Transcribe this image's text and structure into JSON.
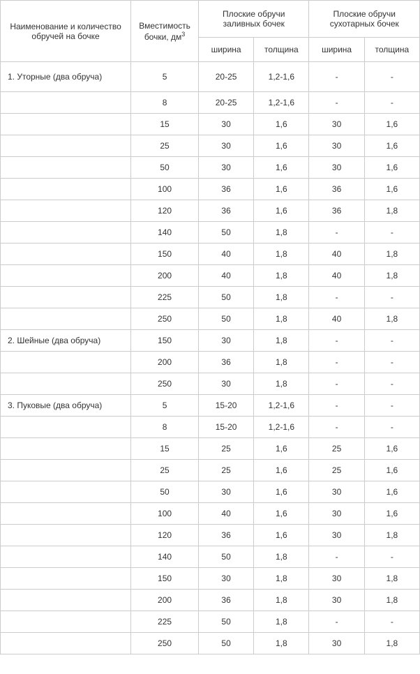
{
  "headers": {
    "name": "Наименование и количество обручей на бочке",
    "capacity_prefix": "Вместимость бочки, дм",
    "capacity_sup": "3",
    "flat_wet": "Плоские обручи заливных бочек",
    "flat_dry": "Плоские обручи сухотарных бочек",
    "width": "ширина",
    "thickness": "толщина"
  },
  "groups": [
    {
      "label": "1. Уторные (два обруча)",
      "rows": [
        {
          "cap": "5",
          "w1": "20-25",
          "t1": "1,2-1,6",
          "w2": "-",
          "t2": "-"
        },
        {
          "cap": "8",
          "w1": "20-25",
          "t1": "1,2-1,6",
          "w2": "-",
          "t2": "-"
        },
        {
          "cap": "15",
          "w1": "30",
          "t1": "1,6",
          "w2": "30",
          "t2": "1,6"
        },
        {
          "cap": "25",
          "w1": "30",
          "t1": "1,6",
          "w2": "30",
          "t2": "1,6"
        },
        {
          "cap": "50",
          "w1": "30",
          "t1": "1,6",
          "w2": "30",
          "t2": "1,6"
        },
        {
          "cap": "100",
          "w1": "36",
          "t1": "1,6",
          "w2": "36",
          "t2": "1,6"
        },
        {
          "cap": "120",
          "w1": "36",
          "t1": "1,6",
          "w2": "36",
          "t2": "1,8"
        },
        {
          "cap": "140",
          "w1": "50",
          "t1": "1,8",
          "w2": "-",
          "t2": "-"
        },
        {
          "cap": "150",
          "w1": "40",
          "t1": "1,8",
          "w2": "40",
          "t2": "1,8"
        },
        {
          "cap": "200",
          "w1": "40",
          "t1": "1,8",
          "w2": "40",
          "t2": "1,8"
        },
        {
          "cap": "225",
          "w1": "50",
          "t1": "1,8",
          "w2": "-",
          "t2": "-"
        },
        {
          "cap": "250",
          "w1": "50",
          "t1": "1,8",
          "w2": "40",
          "t2": "1,8"
        }
      ]
    },
    {
      "label": "2. Шейные (два обруча)",
      "rows": [
        {
          "cap": "150",
          "w1": "30",
          "t1": "1,8",
          "w2": "-",
          "t2": "-"
        },
        {
          "cap": "200",
          "w1": "36",
          "t1": "1,8",
          "w2": "-",
          "t2": "-"
        },
        {
          "cap": "250",
          "w1": "30",
          "t1": "1,8",
          "w2": "-",
          "t2": "-"
        }
      ]
    },
    {
      "label": "3. Пуковые (два обруча)",
      "rows": [
        {
          "cap": "5",
          "w1": "15-20",
          "t1": "1,2-1,6",
          "w2": "-",
          "t2": "-"
        },
        {
          "cap": "8",
          "w1": "15-20",
          "t1": "1,2-1,6",
          "w2": "-",
          "t2": "-"
        },
        {
          "cap": "15",
          "w1": "25",
          "t1": "1,6",
          "w2": "25",
          "t2": "1,6"
        },
        {
          "cap": "25",
          "w1": "25",
          "t1": "1,6",
          "w2": "25",
          "t2": "1,6"
        },
        {
          "cap": "50",
          "w1": "30",
          "t1": "1,6",
          "w2": "30",
          "t2": "1,6"
        },
        {
          "cap": "100",
          "w1": "40",
          "t1": "1,6",
          "w2": "30",
          "t2": "1,6"
        },
        {
          "cap": "120",
          "w1": "36",
          "t1": "1,6",
          "w2": "30",
          "t2": "1,8"
        },
        {
          "cap": "140",
          "w1": "50",
          "t1": "1,8",
          "w2": "-",
          "t2": "-"
        },
        {
          "cap": "150",
          "w1": "30",
          "t1": "1,8",
          "w2": "30",
          "t2": "1,8"
        },
        {
          "cap": "200",
          "w1": "36",
          "t1": "1,8",
          "w2": "30",
          "t2": "1,8"
        },
        {
          "cap": "225",
          "w1": "50",
          "t1": "1,8",
          "w2": "-",
          "t2": "-"
        },
        {
          "cap": "250",
          "w1": "50",
          "t1": "1,8",
          "w2": "30",
          "t2": "1,8"
        }
      ]
    }
  ]
}
